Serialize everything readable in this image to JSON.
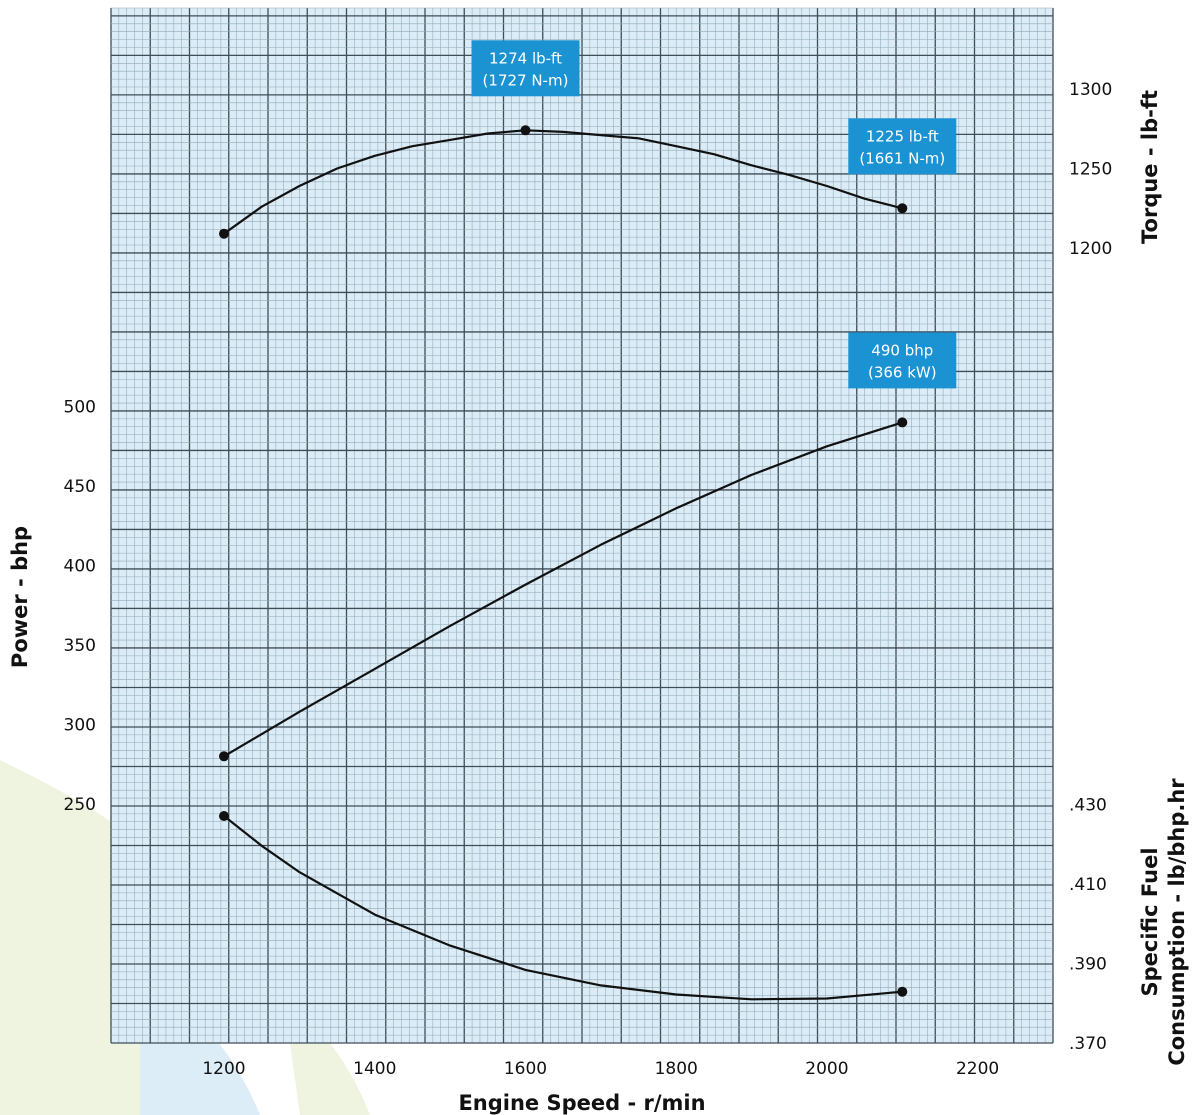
{
  "chart_data": {
    "type": "line",
    "x_axis": {
      "label": "Engine Speed - r/min",
      "ticks": [
        1200,
        1400,
        1600,
        1800,
        2000,
        2200
      ],
      "range": [
        1050,
        2300
      ]
    },
    "torque_axis": {
      "label": "Torque - lb-ft",
      "ticks": [
        "1300",
        "1250",
        "1200"
      ],
      "tick_values": [
        1300,
        1250,
        1200
      ],
      "position": "right-top"
    },
    "power_axis": {
      "label": "Power - bhp",
      "ticks": [
        "500",
        "450",
        "400",
        "350",
        "300",
        "250"
      ],
      "tick_values": [
        500,
        450,
        400,
        350,
        300,
        250
      ],
      "position": "left"
    },
    "fuel_axis": {
      "label_line1": "Specific Fuel",
      "label_line2": "Consumption - lb/bhp.hr",
      "ticks": [
        ".430",
        ".410",
        ".390",
        ".370"
      ],
      "tick_values": [
        0.43,
        0.41,
        0.39,
        0.37
      ],
      "position": "right-bottom"
    },
    "series": [
      {
        "axis": "torque",
        "x": [
          1200,
          1250,
          1300,
          1350,
          1400,
          1450,
          1500,
          1550,
          1600,
          1650,
          1700,
          1750,
          1800,
          1850,
          1900,
          1950,
          2000,
          2050,
          2100
        ],
        "y": [
          1209,
          1226,
          1239,
          1250,
          1258,
          1264,
          1268,
          1272,
          1274,
          1273,
          1271,
          1269,
          1264,
          1259,
          1252,
          1246,
          1239,
          1231,
          1225
        ],
        "markers": [
          [
            1200,
            1209
          ],
          [
            1600,
            1274
          ],
          [
            2100,
            1225
          ]
        ]
      },
      {
        "axis": "power",
        "x": [
          1200,
          1300,
          1400,
          1500,
          1600,
          1700,
          1800,
          1900,
          2000,
          2100
        ],
        "y": [
          280,
          308,
          335,
          362,
          388,
          413,
          436,
          457,
          475,
          490
        ],
        "markers": [
          [
            1200,
            280
          ],
          [
            2100,
            490
          ]
        ]
      },
      {
        "axis": "fuel",
        "x": [
          1200,
          1250,
          1300,
          1400,
          1500,
          1600,
          1700,
          1800,
          1900,
          2000,
          2100
        ],
        "y": [
          0.4271,
          0.4196,
          0.413,
          0.4023,
          0.3945,
          0.3884,
          0.3845,
          0.3822,
          0.381,
          0.3812,
          0.3829
        ],
        "markers": [
          [
            1200,
            0.4271
          ],
          [
            2100,
            0.3829
          ]
        ]
      }
    ],
    "annotations": [
      {
        "line1": "1274 lb-ft",
        "line2": "(1727 N-m)",
        "axis": "torque",
        "anchor_x": 1600,
        "anchor_y": 1274
      },
      {
        "line1": "1225 lb-ft",
        "line2": "(1661 N-m)",
        "axis": "torque",
        "anchor_x": 2100,
        "anchor_y": 1225
      },
      {
        "line1": "490 bhp",
        "line2": "(366 kW)",
        "axis": "power",
        "anchor_x": 2100,
        "anchor_y": 490
      }
    ],
    "grid": true,
    "colors": {
      "grid_background": "#dbecf6",
      "grid_minor": "#8fa8b8",
      "grid_major": "#3f4d57",
      "line": "#111111",
      "annotation_box": "#1b92d1",
      "annotation_text": "#ffffff",
      "decor_green": "#eef4df",
      "decor_blue": "#dcedf7"
    }
  }
}
